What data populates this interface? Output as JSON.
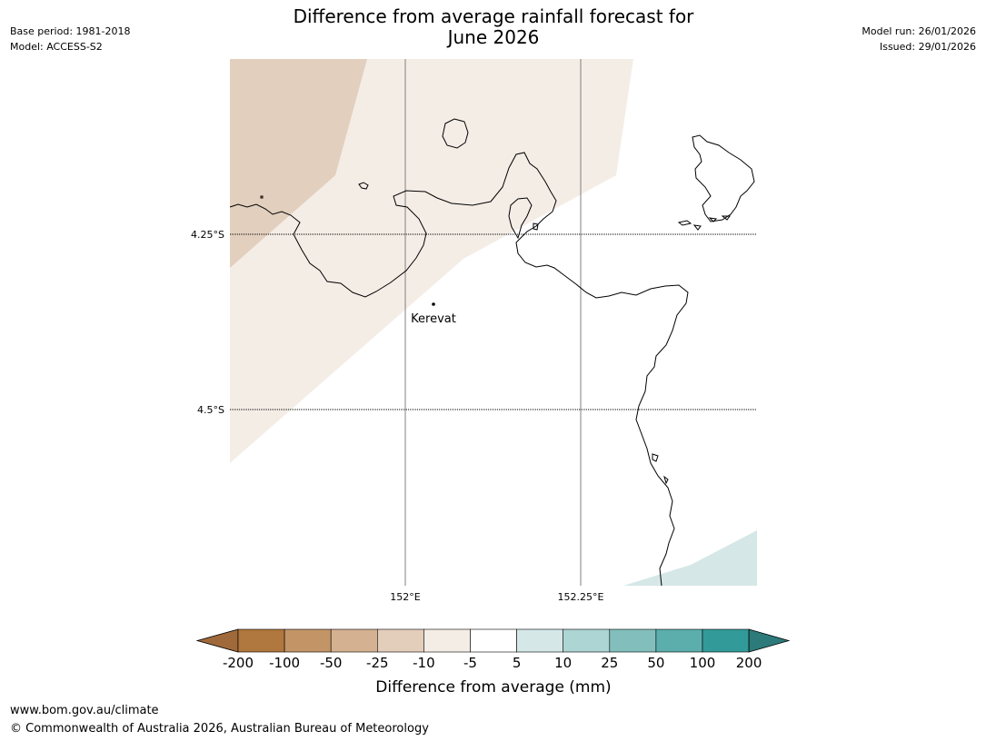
{
  "header": {
    "title_line1": "Difference from average rainfall forecast for",
    "title_line2": "June 2026",
    "base_period": "Base period: 1981-2018",
    "model": "Model: ACCESS-S2",
    "model_run": "Model run: 26/01/2026",
    "issued": "Issued: 29/01/2026"
  },
  "map": {
    "lat_labels": [
      "4.25°S",
      "4.5°S"
    ],
    "lon_labels": [
      "152°E",
      "152.25°E"
    ],
    "place": "Kerevat",
    "colors": {
      "coast": "#000000",
      "grid": "#808080",
      "dry_25": "#e2cfbd",
      "dry_10": "#f4ede6",
      "wet_5": "#d5e7e6"
    }
  },
  "colorbar": {
    "title": "Difference from average (mm)",
    "ticks": [
      "-200",
      "-100",
      "-50",
      "-25",
      "-10",
      "-5",
      "5",
      "10",
      "25",
      "50",
      "100",
      "200"
    ],
    "colors": [
      "#a0693a",
      "#b0773e",
      "#c39566",
      "#d4b291",
      "#e3cebb",
      "#f4ede6",
      "#ffffff",
      "#d5e8e7",
      "#acd5d4",
      "#82bfbc",
      "#5caeac",
      "#329b99",
      "#2c7b7a"
    ]
  },
  "footer": {
    "url": "www.bom.gov.au/climate",
    "copyright": "© Commonwealth of Australia 2026, Australian Bureau of Meteorology"
  }
}
